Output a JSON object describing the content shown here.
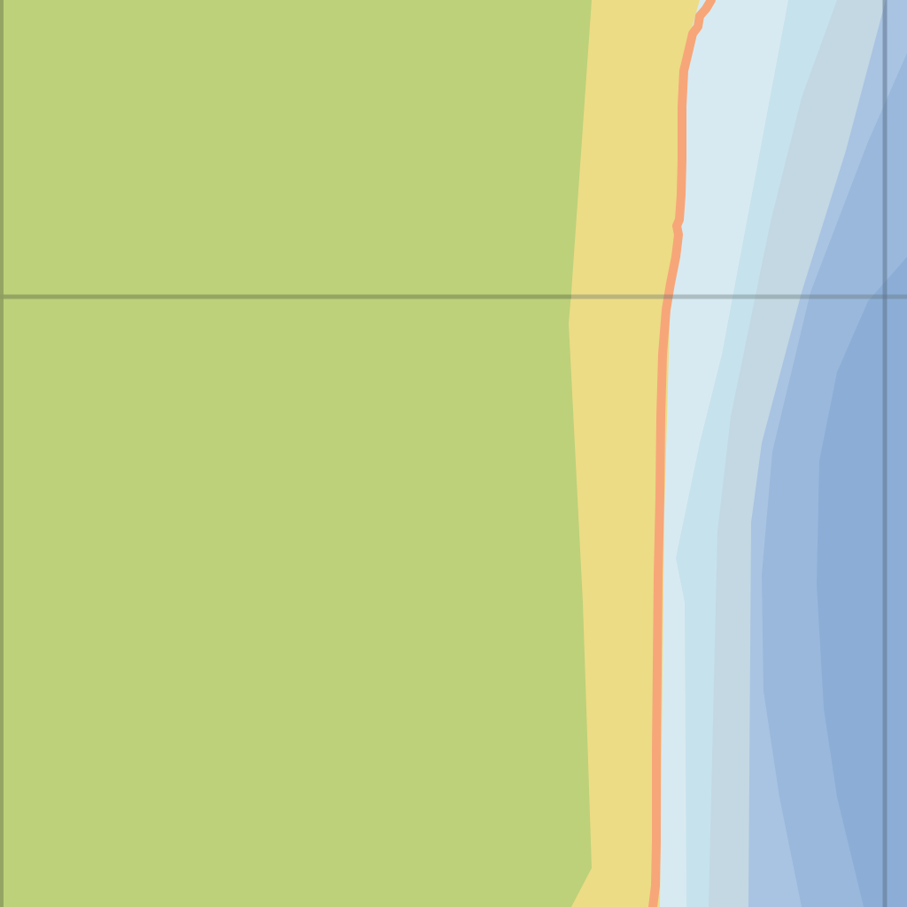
{
  "map": {
    "layers": [
      {
        "name": "land",
        "color": "#bcd17a"
      },
      {
        "name": "beach",
        "color": "#ecdc85"
      },
      {
        "name": "shoreline",
        "color": "#f7a679"
      },
      {
        "name": "shallow-water",
        "color": "#d8eaf1"
      },
      {
        "name": "water-depth-2",
        "color": "#c6e2ed"
      },
      {
        "name": "water-depth-3",
        "color": "#c3d8e3"
      },
      {
        "name": "water-depth-4",
        "color": "#a9c4e2"
      },
      {
        "name": "water-depth-5",
        "color": "#9ab8dc"
      },
      {
        "name": "deep-water",
        "color": "#8caed6"
      }
    ],
    "grid": {
      "visible": true,
      "line_color_land": "#8e9e60",
      "line_color_water": "#7891ac"
    }
  }
}
